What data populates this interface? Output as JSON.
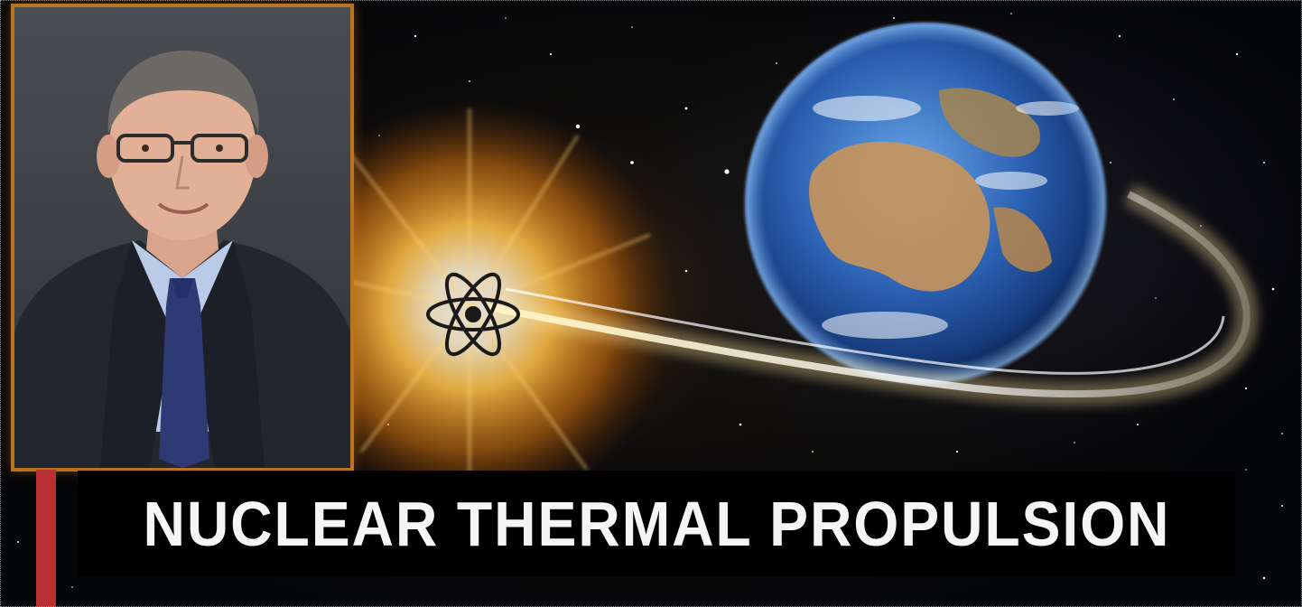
{
  "banner": {
    "title": "NUCLEAR THERMAL PROPULSION"
  },
  "colors": {
    "frame_border": "#b8741f",
    "accent_bar": "#b8302f",
    "title_text": "#f5f5f5",
    "title_background": "#000000"
  },
  "icons": {
    "atom": "atom-icon",
    "planet": "earth-globe",
    "flare": "sun-flare"
  }
}
